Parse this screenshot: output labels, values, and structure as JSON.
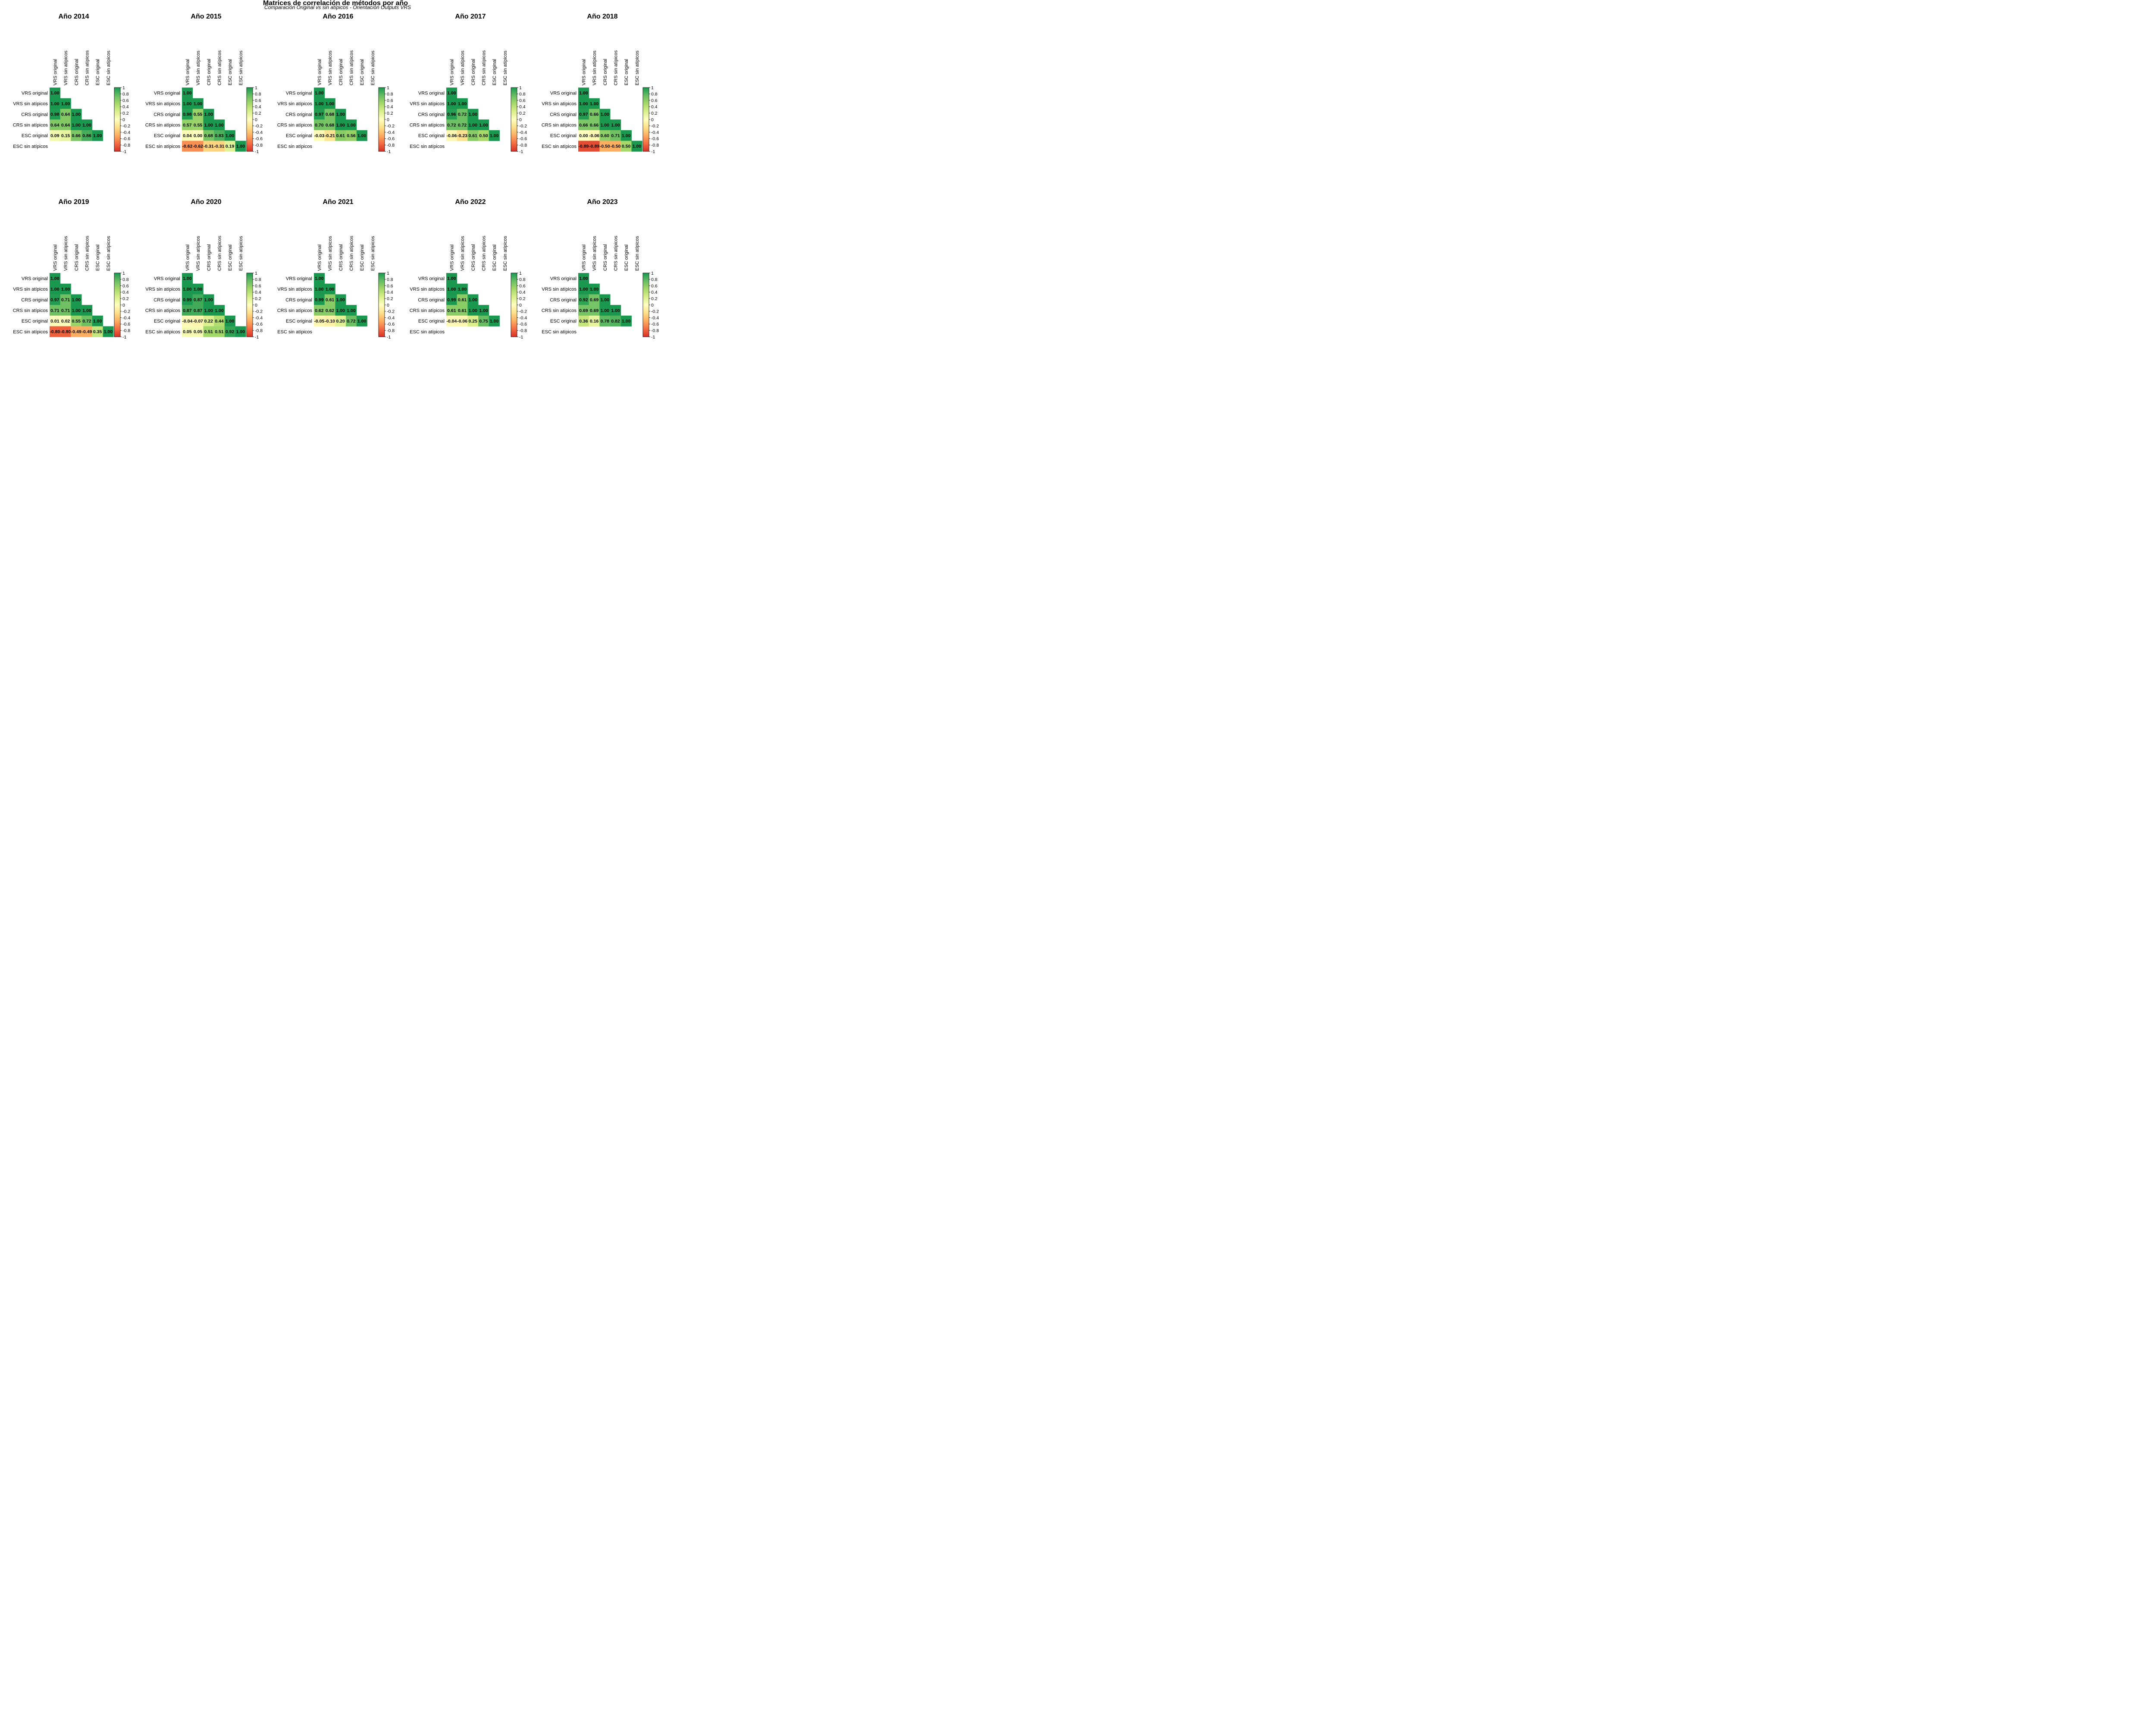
{
  "page": {
    "title": "Matrices de correlación de métodos por año",
    "subtitle": "Comparación Original vs sin atípicos - Orientación Outputs VRS"
  },
  "colors": {
    "scale": [
      "#d73027",
      "#f46d43",
      "#fdae61",
      "#fee08b",
      "#ffffbf",
      "#d9ef8b",
      "#a6d96a",
      "#66bd63",
      "#1a9850"
    ]
  },
  "chart_data": {
    "type": "heatmap",
    "variables": [
      "VRS original",
      "VRS sin atípicos",
      "CRS original",
      "CRS sin atípicos",
      "ESC original",
      "ESC sin atípicos"
    ],
    "legend_ticks": [
      "1",
      "0.8",
      "0.6",
      "0.4",
      "0.2",
      "0",
      "-0.2",
      "-0.4",
      "-0.6",
      "-0.8",
      "-1"
    ],
    "value_range": [
      -1,
      1
    ],
    "panels": [
      {
        "title": "Año 2014",
        "rows": [
          [
            1.0
          ],
          [
            1.0,
            1.0
          ],
          [
            0.98,
            0.64,
            1.0
          ],
          [
            0.64,
            0.64,
            1.0,
            1.0
          ],
          [
            0.09,
            0.15,
            0.66,
            0.86,
            1.0
          ],
          []
        ]
      },
      {
        "title": "Año 2015",
        "rows": [
          [
            1.0
          ],
          [
            1.0,
            1.0
          ],
          [
            0.98,
            0.55,
            1.0
          ],
          [
            0.57,
            0.55,
            1.0,
            1.0
          ],
          [
            0.04,
            0.0,
            0.68,
            0.83,
            1.0
          ],
          [
            -0.62,
            -0.62,
            -0.31,
            -0.31,
            0.19,
            1.0
          ]
        ]
      },
      {
        "title": "Año 2016",
        "rows": [
          [
            1.0
          ],
          [
            1.0,
            1.0
          ],
          [
            0.97,
            0.68,
            1.0
          ],
          [
            0.7,
            0.68,
            1.0,
            1.0
          ],
          [
            -0.03,
            -0.21,
            0.61,
            0.56,
            1.0
          ],
          []
        ]
      },
      {
        "title": "Año 2017",
        "rows": [
          [
            1.0
          ],
          [
            1.0,
            1.0
          ],
          [
            0.96,
            0.72,
            1.0
          ],
          [
            0.72,
            0.72,
            1.0,
            1.0
          ],
          [
            -0.06,
            -0.23,
            0.61,
            0.5,
            1.0
          ],
          []
        ]
      },
      {
        "title": "Año 2018",
        "rows": [
          [
            1.0
          ],
          [
            1.0,
            1.0
          ],
          [
            0.97,
            0.66,
            1.0
          ],
          [
            0.66,
            0.66,
            1.0,
            1.0
          ],
          [
            0.0,
            -0.06,
            0.6,
            0.71,
            1.0
          ],
          [
            -0.89,
            -0.89,
            -0.5,
            -0.5,
            0.5,
            1.0
          ]
        ]
      },
      {
        "title": "Año 2019",
        "rows": [
          [
            1.0
          ],
          [
            1.0,
            1.0
          ],
          [
            0.97,
            0.71,
            1.0
          ],
          [
            0.71,
            0.71,
            1.0,
            1.0
          ],
          [
            0.01,
            0.02,
            0.55,
            0.72,
            1.0
          ],
          [
            -0.8,
            -0.8,
            -0.49,
            -0.49,
            0.35,
            1.0
          ]
        ]
      },
      {
        "title": "Año 2020",
        "rows": [
          [
            1.0
          ],
          [
            1.0,
            1.0
          ],
          [
            0.99,
            0.87,
            1.0
          ],
          [
            0.87,
            0.87,
            1.0,
            1.0
          ],
          [
            -0.04,
            -0.07,
            0.22,
            0.44,
            1.0
          ],
          [
            0.05,
            0.05,
            0.51,
            0.51,
            0.92,
            1.0
          ]
        ]
      },
      {
        "title": "Año 2021",
        "rows": [
          [
            1.0
          ],
          [
            1.0,
            1.0
          ],
          [
            0.99,
            0.61,
            1.0
          ],
          [
            0.62,
            0.62,
            1.0,
            1.0
          ],
          [
            -0.05,
            -0.1,
            0.2,
            0.72,
            1.0
          ],
          []
        ]
      },
      {
        "title": "Año 2022",
        "rows": [
          [
            1.0
          ],
          [
            1.0,
            1.0
          ],
          [
            0.99,
            0.61,
            1.0
          ],
          [
            0.61,
            0.61,
            1.0,
            1.0
          ],
          [
            -0.04,
            -0.06,
            0.25,
            0.75,
            1.0
          ],
          []
        ]
      },
      {
        "title": "Año 2023",
        "rows": [
          [
            1.0
          ],
          [
            1.0,
            1.0
          ],
          [
            0.92,
            0.69,
            1.0
          ],
          [
            0.69,
            0.69,
            1.0,
            1.0
          ],
          [
            0.36,
            0.16,
            0.78,
            0.82,
            1.0
          ],
          []
        ]
      }
    ]
  }
}
